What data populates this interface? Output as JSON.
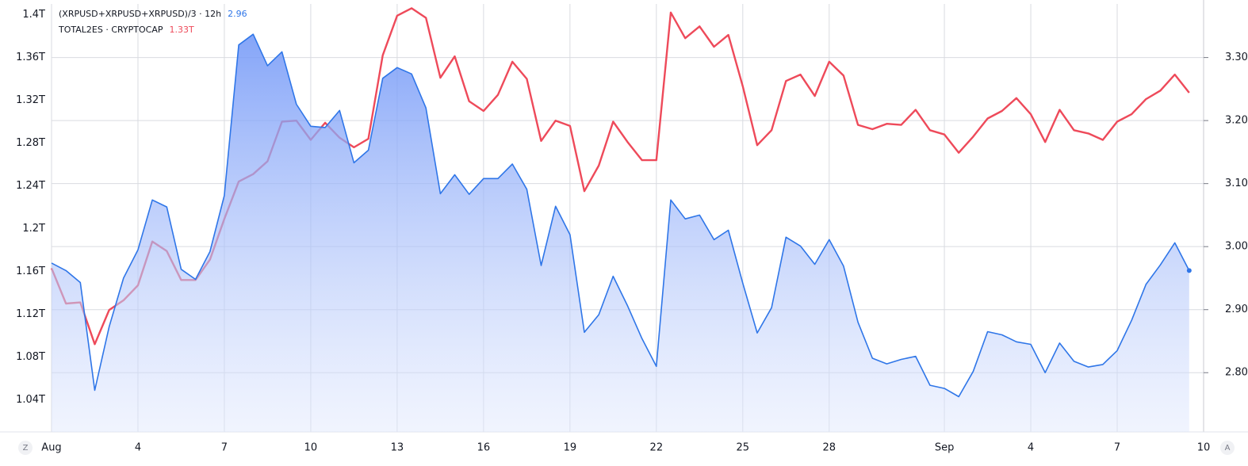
{
  "chart_data": {
    "type": "line",
    "x": [
      0,
      0.5,
      1,
      1.5,
      2,
      2.5,
      3,
      3.5,
      4,
      4.5,
      5,
      5.5,
      6,
      6.5,
      7,
      7.5,
      8,
      8.5,
      9,
      9.5,
      10,
      10.5,
      11,
      11.5,
      12,
      12.5,
      13,
      13.5,
      14,
      14.5,
      15,
      15.5,
      16,
      16.5,
      17,
      17.5,
      18,
      18.5,
      19,
      19.5,
      20,
      20.5,
      21,
      21.5,
      22,
      22.5,
      23,
      23.5,
      24,
      24.5,
      25,
      25.5,
      26,
      26.5,
      27,
      27.5,
      28,
      28.5,
      29,
      29.5,
      30,
      30.5,
      31,
      31.5,
      32,
      32.5,
      33,
      33.5,
      34,
      34.5,
      35,
      35.5,
      36,
      36.5,
      37,
      37.5,
      38,
      38.5,
      39,
      39.5
    ],
    "xlim": [
      0,
      40
    ],
    "xticks": [
      {
        "value": 0,
        "label": "Aug"
      },
      {
        "value": 3,
        "label": "4"
      },
      {
        "value": 6,
        "label": "7"
      },
      {
        "value": 9,
        "label": "10"
      },
      {
        "value": 12,
        "label": "13"
      },
      {
        "value": 15,
        "label": "16"
      },
      {
        "value": 18,
        "label": "19"
      },
      {
        "value": 21,
        "label": "22"
      },
      {
        "value": 24,
        "label": "25"
      },
      {
        "value": 27,
        "label": "28"
      },
      {
        "value": 31,
        "label": "Sep"
      },
      {
        "value": 34,
        "label": "4"
      },
      {
        "value": 37,
        "label": "7"
      },
      {
        "value": 40,
        "label": "10"
      }
    ],
    "ylim": [
      1.01,
      1.41
    ],
    "yticks": [
      {
        "value": 1.04,
        "label": "1.04T"
      },
      {
        "value": 1.08,
        "label": "1.08T"
      },
      {
        "value": 1.12,
        "label": "1.12T"
      },
      {
        "value": 1.16,
        "label": "1.16T"
      },
      {
        "value": 1.2,
        "label": "1.2T"
      },
      {
        "value": 1.24,
        "label": "1.24T"
      },
      {
        "value": 1.28,
        "label": "1.28T"
      },
      {
        "value": 1.32,
        "label": "1.32T"
      },
      {
        "value": 1.36,
        "label": "1.36T"
      },
      {
        "value": 1.4,
        "label": "1.4T"
      }
    ],
    "y2lim": [
      2.706,
      3.385
    ],
    "y2ticks": [
      {
        "value": 2.8,
        "label": "2.80"
      },
      {
        "value": 2.9,
        "label": "2.90"
      },
      {
        "value": 3.0,
        "label": "3.00"
      },
      {
        "value": 3.1,
        "label": "3.10"
      },
      {
        "value": 3.2,
        "label": "3.20"
      },
      {
        "value": 3.3,
        "label": "3.30"
      }
    ],
    "grid": true,
    "series": [
      {
        "name": "TOTAL2ES · CRYPTOCAP",
        "value_label": "1.33T",
        "color": "#ee4a5a",
        "values": [
          1.163,
          1.13,
          1.131,
          1.092,
          1.124,
          1.133,
          1.147,
          1.188,
          1.179,
          1.152,
          1.152,
          1.171,
          1.209,
          1.244,
          1.251,
          1.263,
          1.3,
          1.301,
          1.283,
          1.299,
          1.285,
          1.276,
          1.284,
          1.362,
          1.399,
          1.406,
          1.397,
          1.341,
          1.361,
          1.319,
          1.31,
          1.325,
          1.356,
          1.34,
          1.282,
          1.301,
          1.296,
          1.235,
          1.259,
          1.3,
          1.281,
          1.264,
          1.264,
          1.402,
          1.378,
          1.389,
          1.37,
          1.381,
          1.333,
          1.278,
          1.292,
          1.338,
          1.344,
          1.324,
          1.356,
          1.343,
          1.297,
          1.293,
          1.298,
          1.297,
          1.311,
          1.292,
          1.288,
          1.271,
          1.286,
          1.303,
          1.31,
          1.322,
          1.307,
          1.281,
          1.311,
          1.292,
          1.289,
          1.283,
          1.3,
          1.307,
          1.321,
          1.329,
          1.344,
          1.327
        ]
      },
      {
        "name": "(XRPUSD+XRPUSD+XRPUSD)/3 · 12h",
        "value_label": "2.96",
        "color": "#2f76e8",
        "axis": "y2",
        "area": true,
        "values": [
          2.974,
          2.962,
          2.943,
          2.772,
          2.873,
          2.95,
          2.995,
          3.074,
          3.063,
          2.964,
          2.948,
          2.992,
          3.081,
          3.32,
          3.337,
          3.287,
          3.309,
          3.226,
          3.191,
          3.189,
          3.216,
          3.133,
          3.153,
          3.267,
          3.284,
          3.274,
          3.22,
          3.084,
          3.114,
          3.083,
          3.108,
          3.108,
          3.131,
          3.091,
          2.97,
          3.064,
          3.019,
          2.864,
          2.892,
          2.953,
          2.906,
          2.854,
          2.81,
          3.074,
          3.044,
          3.05,
          3.011,
          3.026,
          2.942,
          2.863,
          2.903,
          3.015,
          3.001,
          2.972,
          3.011,
          2.969,
          2.88,
          2.823,
          2.814,
          2.821,
          2.826,
          2.78,
          2.775,
          2.762,
          2.802,
          2.865,
          2.86,
          2.849,
          2.845,
          2.8,
          2.847,
          2.818,
          2.809,
          2.813,
          2.835,
          2.883,
          2.94,
          2.971,
          3.006,
          2.962
        ]
      }
    ],
    "controls": [
      "Z",
      "A"
    ]
  }
}
